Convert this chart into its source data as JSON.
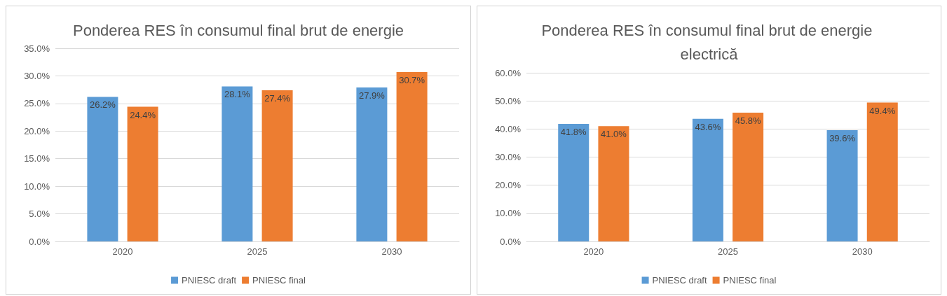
{
  "chart_data": [
    {
      "type": "bar",
      "title": "Ponderea RES în consumul final brut de energie",
      "categories": [
        "2020",
        "2025",
        "2030"
      ],
      "series": [
        {
          "name": "PNIESC draft",
          "color": "#5b9bd5",
          "values": [
            26.2,
            28.1,
            27.9
          ],
          "value_labels": [
            "26.2%",
            "28.1%",
            "27.9%"
          ]
        },
        {
          "name": "PNIESC final",
          "color": "#ed7d31",
          "values": [
            24.4,
            27.4,
            30.7
          ],
          "value_labels": [
            "24.4%",
            "27.4%",
            "30.7%"
          ]
        }
      ],
      "ylim": [
        0,
        35
      ],
      "yticks": [
        {
          "value": 0,
          "label": "0.0%"
        },
        {
          "value": 5,
          "label": "5.0%"
        },
        {
          "value": 10,
          "label": "10.0%"
        },
        {
          "value": 15,
          "label": "15.0%"
        },
        {
          "value": 20,
          "label": "20.0%"
        },
        {
          "value": 25,
          "label": "25.0%"
        },
        {
          "value": 30,
          "label": "30.0%"
        },
        {
          "value": 35,
          "label": "35.0%"
        }
      ],
      "grid": "y",
      "legend": "bottom"
    },
    {
      "type": "bar",
      "title": "Ponderea RES în consumul final brut de energie electrică",
      "categories": [
        "2020",
        "2025",
        "2030"
      ],
      "series": [
        {
          "name": "PNIESC draft",
          "color": "#5b9bd5",
          "values": [
            41.8,
            43.6,
            39.6
          ],
          "value_labels": [
            "41.8%",
            "43.6%",
            "39.6%"
          ]
        },
        {
          "name": "PNIESC final",
          "color": "#ed7d31",
          "values": [
            41.0,
            45.8,
            49.4
          ],
          "value_labels": [
            "41.0%",
            "45.8%",
            "49.4%"
          ]
        }
      ],
      "ylim": [
        0,
        60
      ],
      "yticks": [
        {
          "value": 0,
          "label": "0.0%"
        },
        {
          "value": 10,
          "label": "10.0%"
        },
        {
          "value": 20,
          "label": "20.0%"
        },
        {
          "value": 30,
          "label": "30.0%"
        },
        {
          "value": 40,
          "label": "40.0%"
        },
        {
          "value": 50,
          "label": "50.0%"
        },
        {
          "value": 60,
          "label": "60.0%"
        }
      ],
      "grid": "y",
      "legend": "bottom"
    }
  ]
}
